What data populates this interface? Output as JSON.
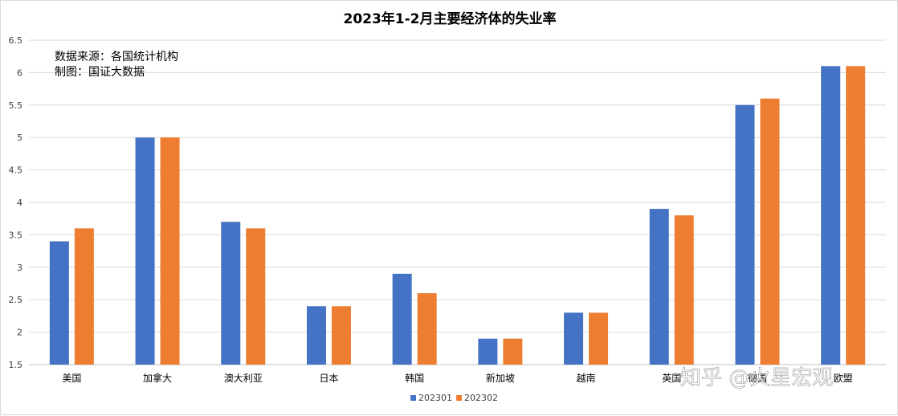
{
  "chart_data": {
    "type": "bar",
    "title": "2023年1-2月主要经济体的失业率",
    "annotations": [
      "数据来源：各国统计机构",
      "制图：国证大数据"
    ],
    "categories": [
      "美国",
      "加拿大",
      "澳大利亚",
      "日本",
      "韩国",
      "新加坡",
      "越南",
      "英国",
      "德国",
      "欧盟"
    ],
    "series": [
      {
        "name": "202301",
        "color": "#4472C4",
        "values": [
          3.4,
          5.0,
          3.7,
          2.4,
          2.9,
          1.9,
          2.3,
          3.9,
          5.5,
          6.1
        ]
      },
      {
        "name": "202302",
        "color": "#ED7D31",
        "values": [
          3.6,
          5.0,
          3.6,
          2.4,
          2.6,
          1.9,
          2.3,
          3.8,
          5.6,
          6.1
        ]
      }
    ],
    "ylim": [
      1.5,
      6.5
    ],
    "yticks": [
      "1.5",
      "2",
      "2.5",
      "3",
      "3.5",
      "4",
      "4.5",
      "5",
      "5.5",
      "6",
      "6.5"
    ],
    "grid": true,
    "legend": "bottom",
    "xlabel": "",
    "ylabel": ""
  },
  "watermark": "知乎 @火星宏观"
}
